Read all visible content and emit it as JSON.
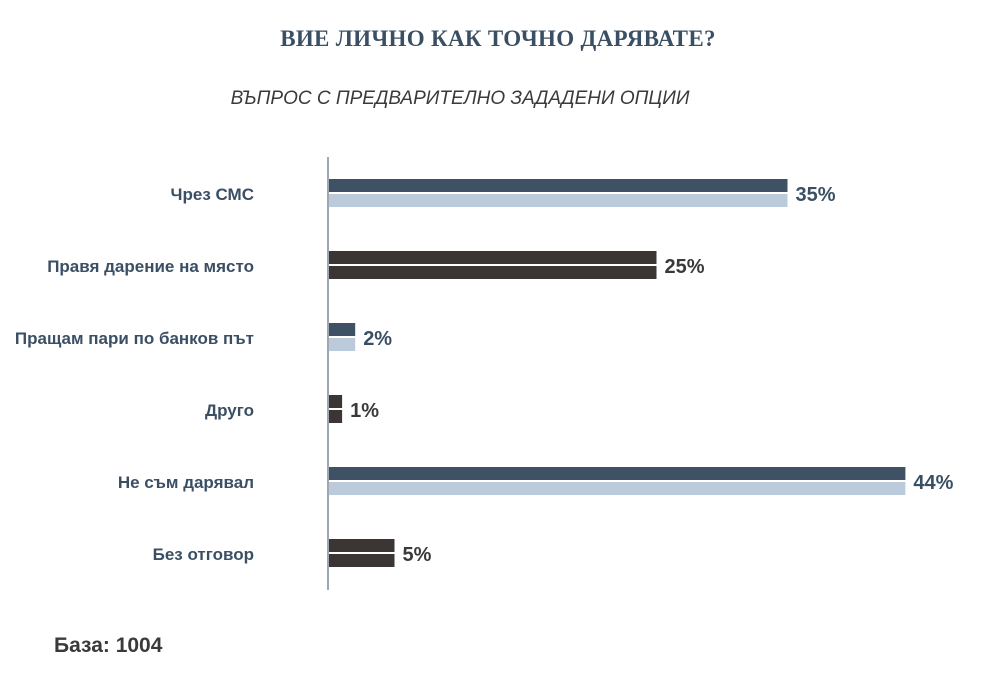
{
  "title": "ВИЕ ЛИЧНО КАК ТОЧНО ДАРЯВАТЕ?",
  "subtitle": "ВЪПРОС С ПРЕДВАРИТЕЛНО ЗАДАДЕНИ ОПЦИИ",
  "base_label": "База: 1004",
  "chart_data": {
    "type": "bar",
    "orientation": "horizontal",
    "categories": [
      "Чрез СМС",
      "Правя дарение на място",
      "Пращам пари по банков път",
      "Друго",
      "Не съм дарявал",
      "Без отговор"
    ],
    "values": [
      35,
      25,
      2,
      1,
      44,
      5
    ],
    "value_labels": [
      "35%",
      "25%",
      "2%",
      "1%",
      "44%",
      "5%"
    ],
    "unit": "%",
    "xlim": [
      0,
      50
    ],
    "grid": false,
    "legend": "none",
    "colors": {
      "blue_top": "#3f5164",
      "blue_bottom": "#bccbdb",
      "dark_top": "#3b3534",
      "dark_bottom": "#3b3534",
      "blue_text": "#3b4f64",
      "dark_text": "#3a3a3a",
      "category_text": "#3b4f64",
      "axis": "#3f5164"
    },
    "bar_styles": [
      "blue",
      "dark",
      "blue",
      "dark",
      "blue",
      "dark"
    ]
  }
}
